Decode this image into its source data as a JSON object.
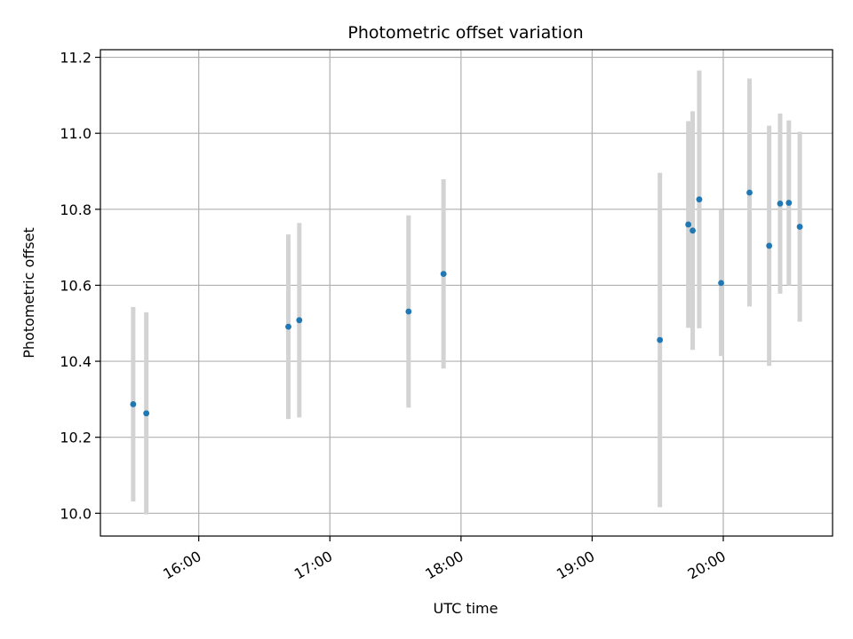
{
  "chart_data": {
    "type": "scatter",
    "title": "Photometric offset variation",
    "xlabel": "UTC time",
    "ylabel": "Photometric offset",
    "x_axis_type": "time",
    "xlim": [
      "15:15",
      "20:50"
    ],
    "ylim": [
      9.94,
      11.22
    ],
    "grid": true,
    "colors": {
      "point": "#1f77b4",
      "errorbar": "#d3d3d3",
      "grid": "#b0b0b0"
    },
    "x_ticks": [
      "16:00",
      "17:00",
      "18:00",
      "19:00",
      "20:00"
    ],
    "y_ticks": [
      10.0,
      10.2,
      10.4,
      10.6,
      10.8,
      11.0,
      11.2
    ],
    "points": [
      {
        "x": "15:30",
        "y": 10.287,
        "err": 0.256
      },
      {
        "x": "15:36",
        "y": 10.263,
        "err": 0.266
      },
      {
        "x": "16:41",
        "y": 10.491,
        "err": 0.243
      },
      {
        "x": "16:46",
        "y": 10.508,
        "err": 0.256
      },
      {
        "x": "17:36",
        "y": 10.531,
        "err": 0.253
      },
      {
        "x": "17:52",
        "y": 10.63,
        "err": 0.249
      },
      {
        "x": "19:31",
        "y": 10.456,
        "err": 0.44
      },
      {
        "x": "19:44",
        "y": 10.76,
        "err": 0.272
      },
      {
        "x": "19:46",
        "y": 10.744,
        "err": 0.314
      },
      {
        "x": "19:49",
        "y": 10.826,
        "err": 0.339
      },
      {
        "x": "19:59",
        "y": 10.606,
        "err": 0.192
      },
      {
        "x": "20:12",
        "y": 10.844,
        "err": 0.3
      },
      {
        "x": "20:21",
        "y": 10.704,
        "err": 0.316
      },
      {
        "x": "20:26",
        "y": 10.815,
        "err": 0.237
      },
      {
        "x": "20:30",
        "y": 10.817,
        "err": 0.217
      },
      {
        "x": "20:35",
        "y": 10.754,
        "err": 0.25
      }
    ]
  }
}
